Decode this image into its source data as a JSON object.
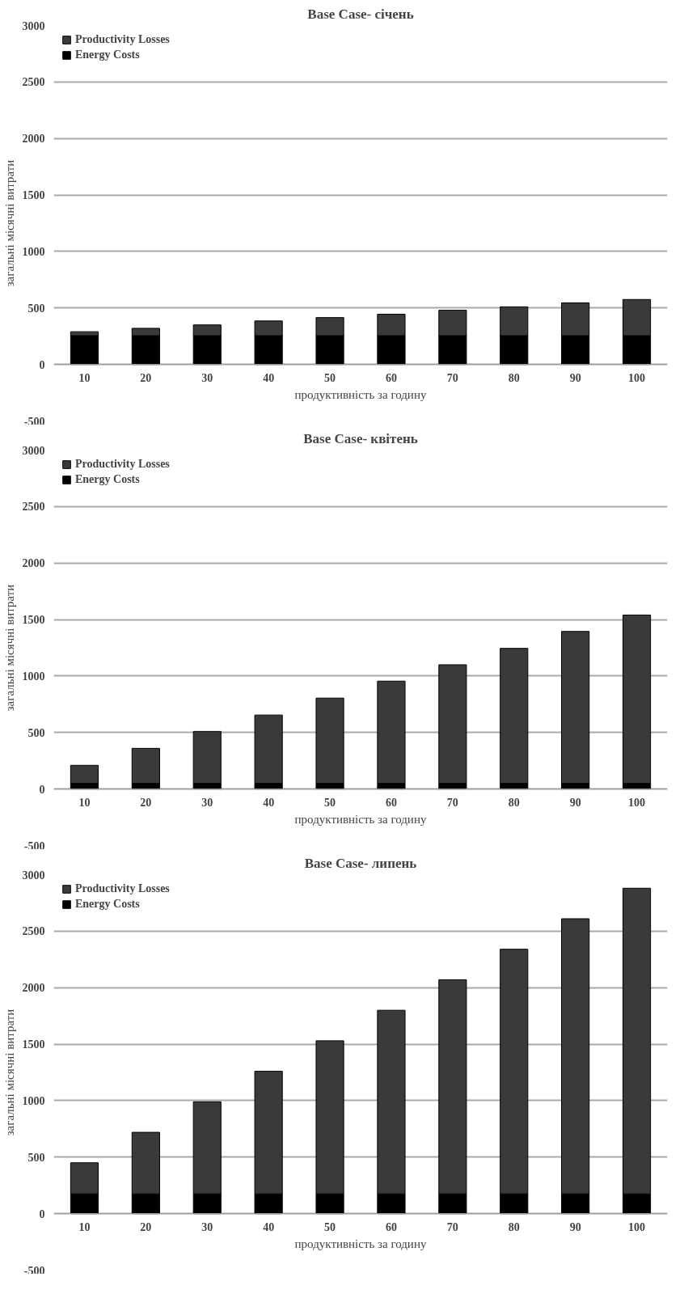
{
  "chart_data": [
    {
      "type": "bar",
      "stacked": true,
      "title": "Base Case- січень",
      "xlabel": "продуктивність за годину",
      "ylabel": "загальні місячні витрати",
      "categories": [
        "10",
        "20",
        "30",
        "40",
        "50",
        "60",
        "70",
        "80",
        "90",
        "100"
      ],
      "series": [
        {
          "name": "Energy Costs",
          "color": "#000000",
          "values": [
            255,
            255,
            255,
            255,
            255,
            255,
            255,
            255,
            255,
            255
          ]
        },
        {
          "name": "Productivity Losses",
          "color": "#3a3a3a",
          "values": [
            35,
            65,
            95,
            130,
            160,
            190,
            225,
            255,
            290,
            320
          ]
        }
      ],
      "ylim": [
        -500,
        3000
      ],
      "yticks": [
        -500,
        0,
        500,
        1000,
        1500,
        2000,
        2500,
        3000
      ],
      "grid": "y",
      "legend": "top left"
    },
    {
      "type": "bar",
      "stacked": true,
      "title": "Base Case- квітень",
      "xlabel": "продуктивність за годину",
      "ylabel": "загальні місячні витрати",
      "categories": [
        "10",
        "20",
        "30",
        "40",
        "50",
        "60",
        "70",
        "80",
        "90",
        "100"
      ],
      "series": [
        {
          "name": "Energy Costs",
          "color": "#000000",
          "values": [
            50,
            50,
            50,
            50,
            50,
            50,
            50,
            50,
            50,
            50
          ]
        },
        {
          "name": "Productivity Losses",
          "color": "#3a3a3a",
          "values": [
            160,
            310,
            460,
            605,
            755,
            905,
            1050,
            1195,
            1345,
            1490
          ]
        }
      ],
      "ylim": [
        -500,
        3000
      ],
      "yticks": [
        -500,
        0,
        500,
        1000,
        1500,
        2000,
        2500,
        3000
      ],
      "grid": "y",
      "legend": "top left"
    },
    {
      "type": "bar",
      "stacked": true,
      "title": "Base Case- липень",
      "xlabel": "продуктивність за годину",
      "ylabel": "загальні місячні витрати",
      "categories": [
        "10",
        "20",
        "30",
        "40",
        "50",
        "60",
        "70",
        "80",
        "90",
        "100"
      ],
      "series": [
        {
          "name": "Energy Costs",
          "color": "#000000",
          "values": [
            175,
            175,
            175,
            175,
            175,
            175,
            175,
            175,
            175,
            175
          ]
        },
        {
          "name": "Productivity Losses",
          "color": "#3a3a3a",
          "values": [
            275,
            545,
            815,
            1085,
            1355,
            1625,
            1895,
            2165,
            2435,
            2705
          ]
        }
      ],
      "ylim": [
        -500,
        3000
      ],
      "yticks": [
        -500,
        0,
        500,
        1000,
        1500,
        2000,
        2500,
        3000
      ],
      "grid": "y",
      "legend": "top left"
    }
  ]
}
